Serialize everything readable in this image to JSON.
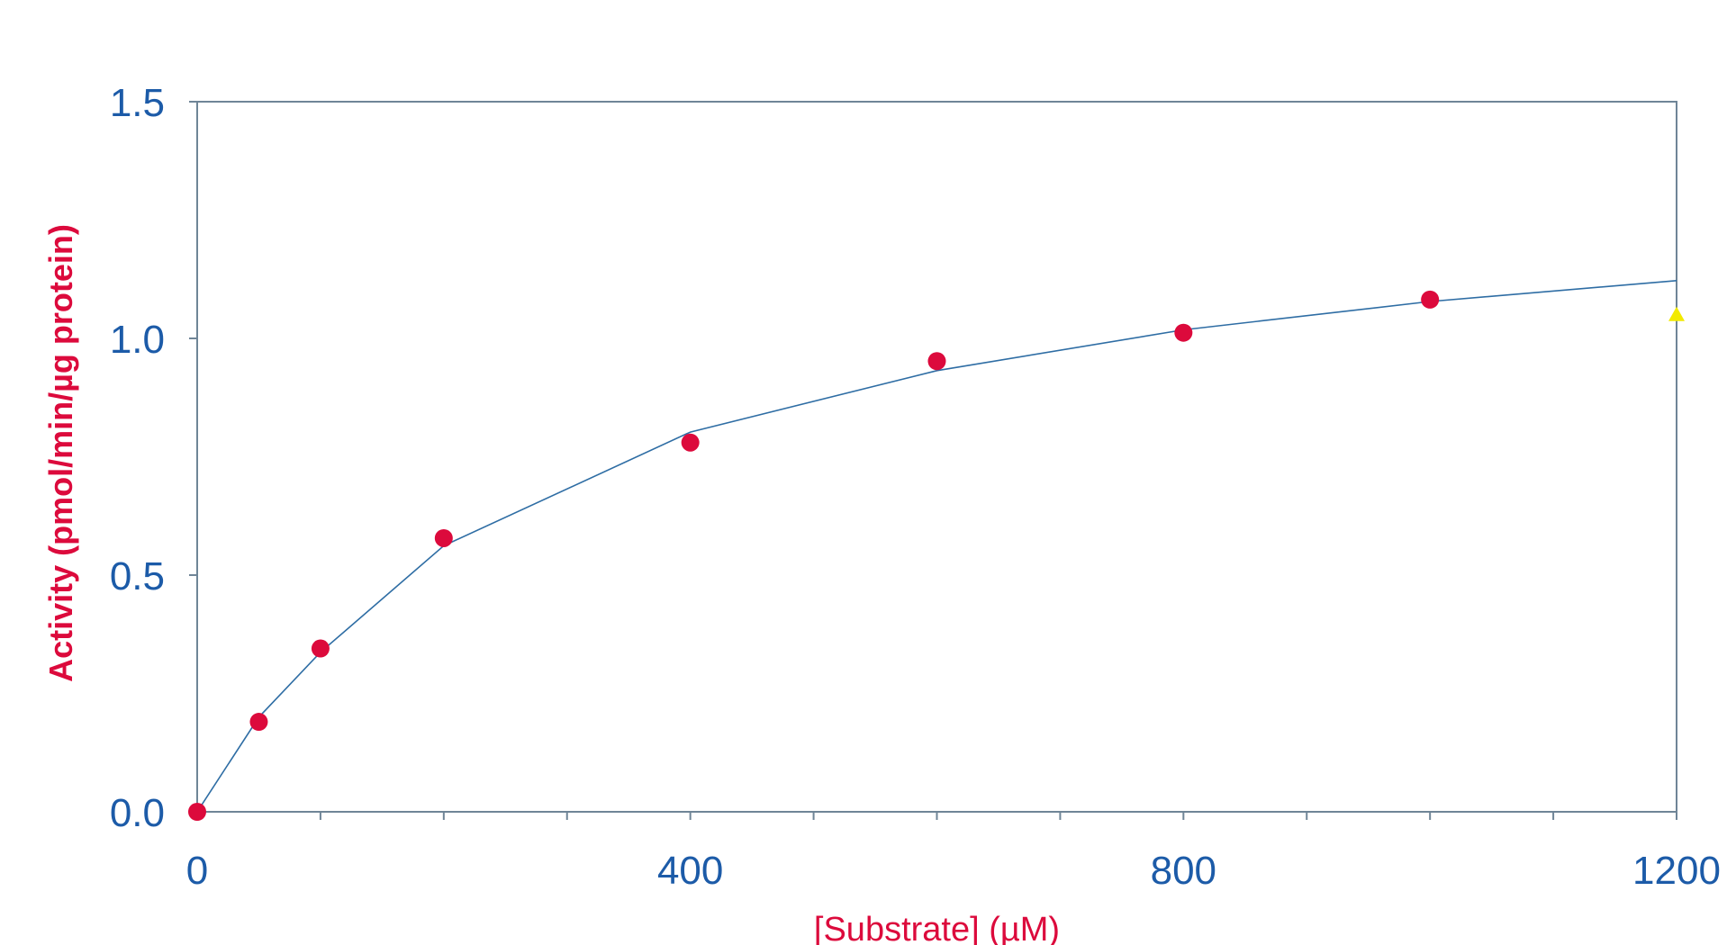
{
  "chart_data": {
    "type": "scatter",
    "xlabel": "[Substrate] (µM)",
    "ylabel": "Activity (pmol/min/µg protein)",
    "xlim": [
      0,
      1200
    ],
    "ylim": [
      0,
      1.5
    ],
    "x_ticks": [
      0,
      400,
      800,
      1200
    ],
    "x_tick_labels": [
      "0",
      "400",
      "800",
      "1200"
    ],
    "x_minor_tick_step": 100,
    "y_ticks": [
      0,
      0.5,
      1.0,
      1.5
    ],
    "y_tick_labels": [
      "0.0",
      "0.5",
      "1.0",
      "1.5"
    ],
    "grid": false,
    "legend": "none",
    "series": [
      {
        "kind": "scatter",
        "marker": "circle",
        "color": "#dc0a3c",
        "x": [
          0,
          50,
          100,
          200,
          400,
          600,
          800,
          1000
        ],
        "y": [
          0.0,
          0.19,
          0.345,
          0.578,
          0.78,
          0.952,
          1.012,
          1.082
        ]
      },
      {
        "kind": "line",
        "color": "#2e6da4",
        "x": [
          0,
          50,
          100,
          200,
          400,
          600,
          800,
          1000,
          1200
        ],
        "y": [
          0.0,
          0.2,
          0.337,
          0.562,
          0.802,
          0.932,
          1.018,
          1.078,
          1.122
        ]
      },
      {
        "kind": "scatter",
        "marker": "triangle",
        "color": "#f2ea00",
        "x": [
          1200
        ],
        "y": [
          1.05
        ]
      }
    ]
  },
  "colors": {
    "axis": "#6f8597",
    "tick_label": "#1c5ba8",
    "x_title": "#dc0a3c",
    "y_title": "#dc0a3c"
  }
}
